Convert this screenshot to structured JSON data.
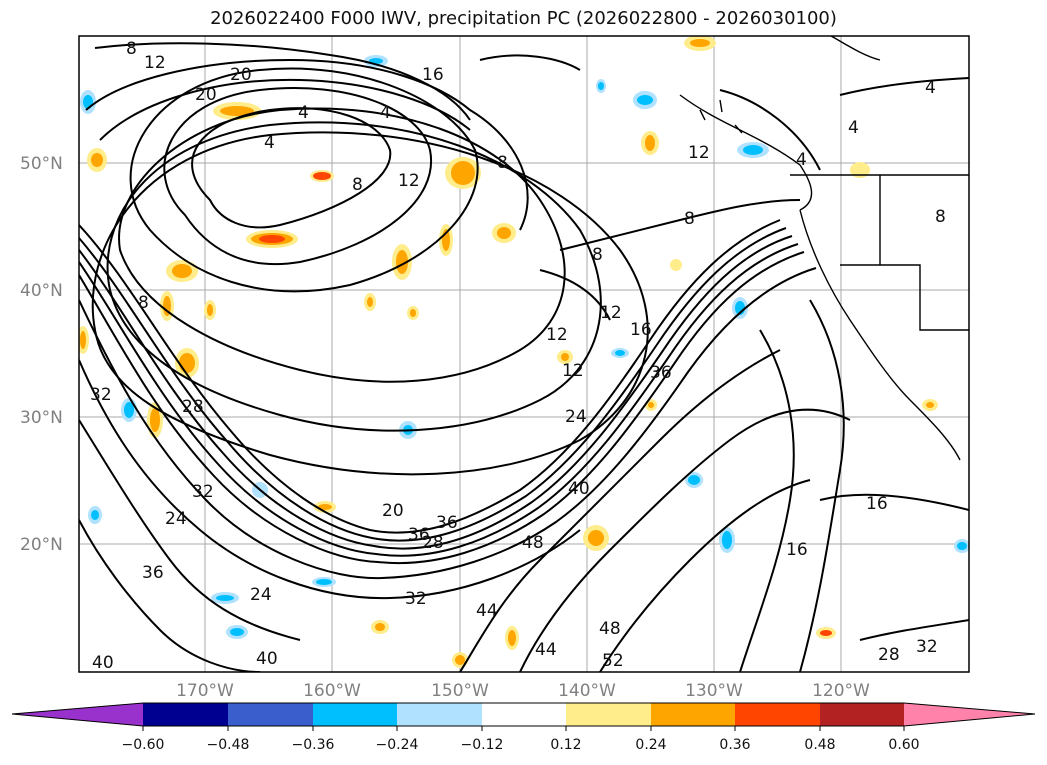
{
  "title": "2026022400 F000 IWV, precipitation PC (2026022800 - 2026030100)",
  "map": {
    "lat_labels": [
      "50°N",
      "40°N",
      "30°N",
      "20°N"
    ],
    "lon_labels": [
      "170°W",
      "160°W",
      "150°W",
      "140°W",
      "130°W",
      "120°W"
    ],
    "contour_labels": [
      "8",
      "12",
      "20",
      "16",
      "20",
      "4",
      "4",
      "8",
      "12",
      "8",
      "4",
      "12",
      "4",
      "4",
      "4",
      "8",
      "8",
      "8",
      "8",
      "12",
      "16",
      "12",
      "12",
      "36",
      "24",
      "40",
      "32",
      "28",
      "32",
      "24",
      "36",
      "24",
      "20",
      "36",
      "36",
      "28",
      "48",
      "32",
      "44",
      "44",
      "48",
      "52",
      "40",
      "40",
      "16",
      "16",
      "28",
      "32"
    ]
  },
  "colorbar": {
    "ticks": [
      "−0.60",
      "−0.48",
      "−0.36",
      "−0.24",
      "−0.12",
      "0.12",
      "0.24",
      "0.36",
      "0.48",
      "0.60"
    ],
    "colors": {
      "under": "#9932cc",
      "c1": "#000090",
      "c2": "#3a5fcd",
      "c3": "#00bfff",
      "c4": "#b0e2ff",
      "c5": "#ffffff",
      "c6": "#ffec8b",
      "c7": "#ffa500",
      "c8": "#ff4500",
      "c9": "#b22222",
      "over": "#ff82ab"
    }
  }
}
